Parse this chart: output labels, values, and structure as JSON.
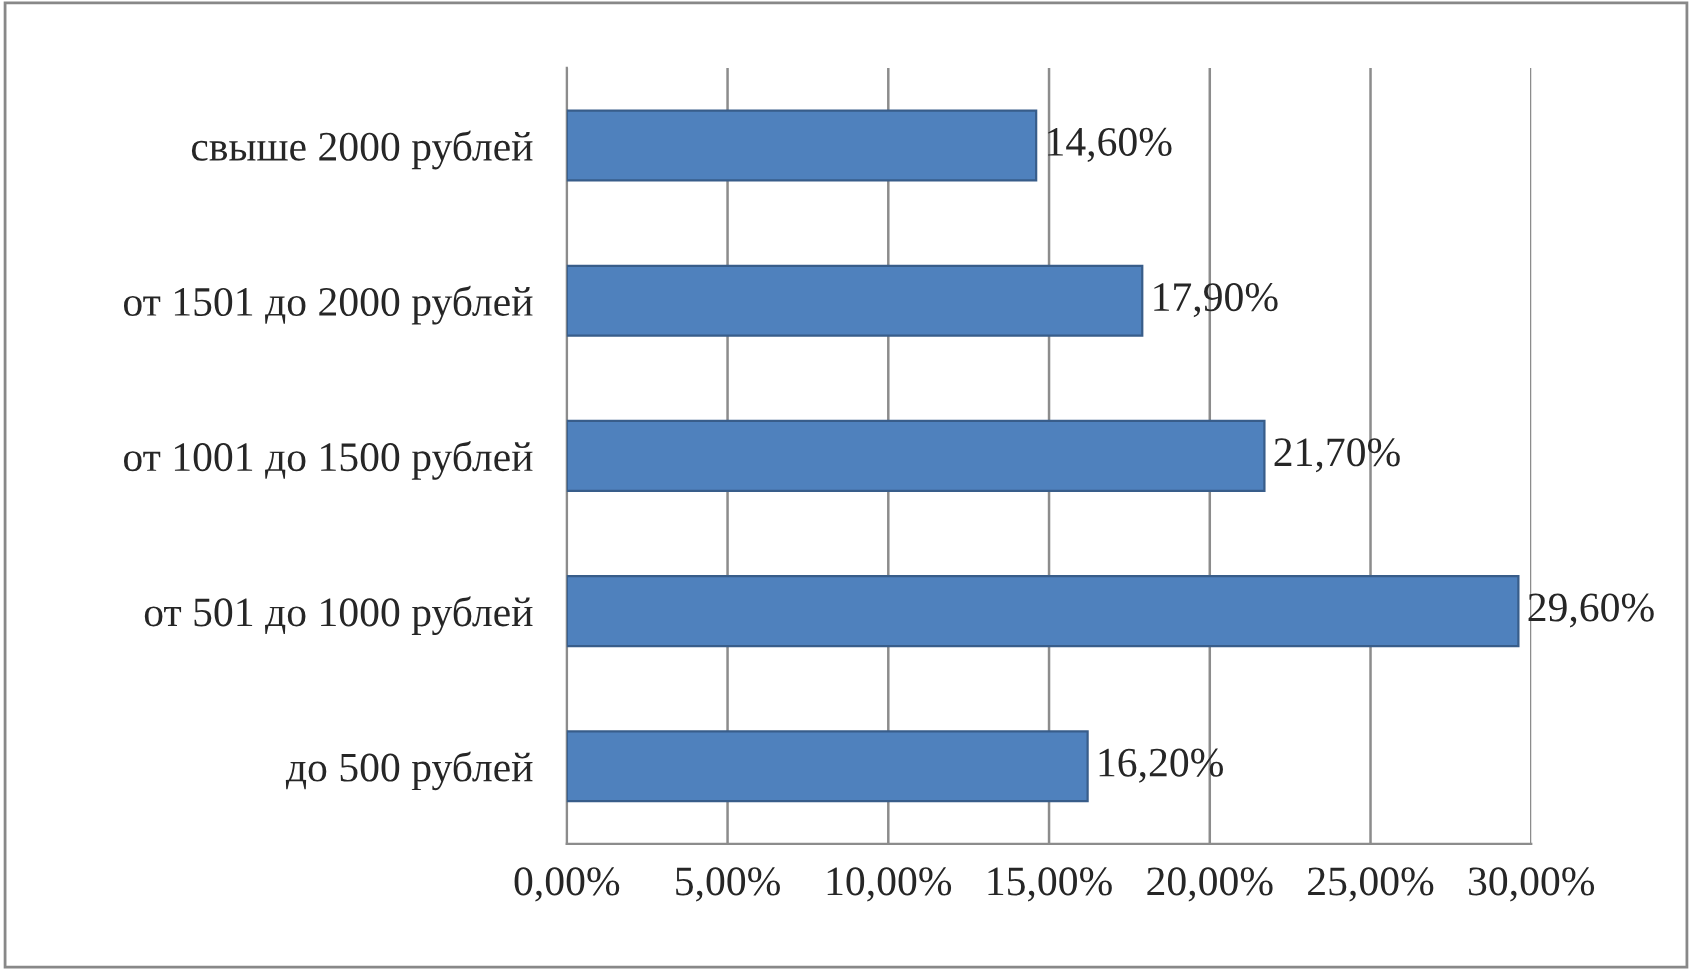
{
  "chart_data": {
    "type": "bar",
    "orientation": "horizontal",
    "categories": [
      "свыше 2000 рублей",
      "от 1501 до 2000 рублей",
      "от 1001 до 1500 рублей",
      "от 501 до 1000 рублей",
      "до 500 рублей"
    ],
    "values": [
      14.6,
      17.9,
      21.7,
      29.6,
      16.2
    ],
    "value_labels": [
      "14,60%",
      "17,90%",
      "21,70%",
      "29,60%",
      "16,20%"
    ],
    "color": "#4f81bd",
    "xlim": [
      0,
      30
    ],
    "xticks": [
      {
        "value": 0,
        "label": "0,00%"
      },
      {
        "value": 5,
        "label": "5,00%"
      },
      {
        "value": 10,
        "label": "10,00%"
      },
      {
        "value": 15,
        "label": "15,00%"
      },
      {
        "value": 20,
        "label": "20,00%"
      },
      {
        "value": 25,
        "label": "25,00%"
      },
      {
        "value": 30,
        "label": "30,00%"
      }
    ],
    "grid": "x"
  }
}
